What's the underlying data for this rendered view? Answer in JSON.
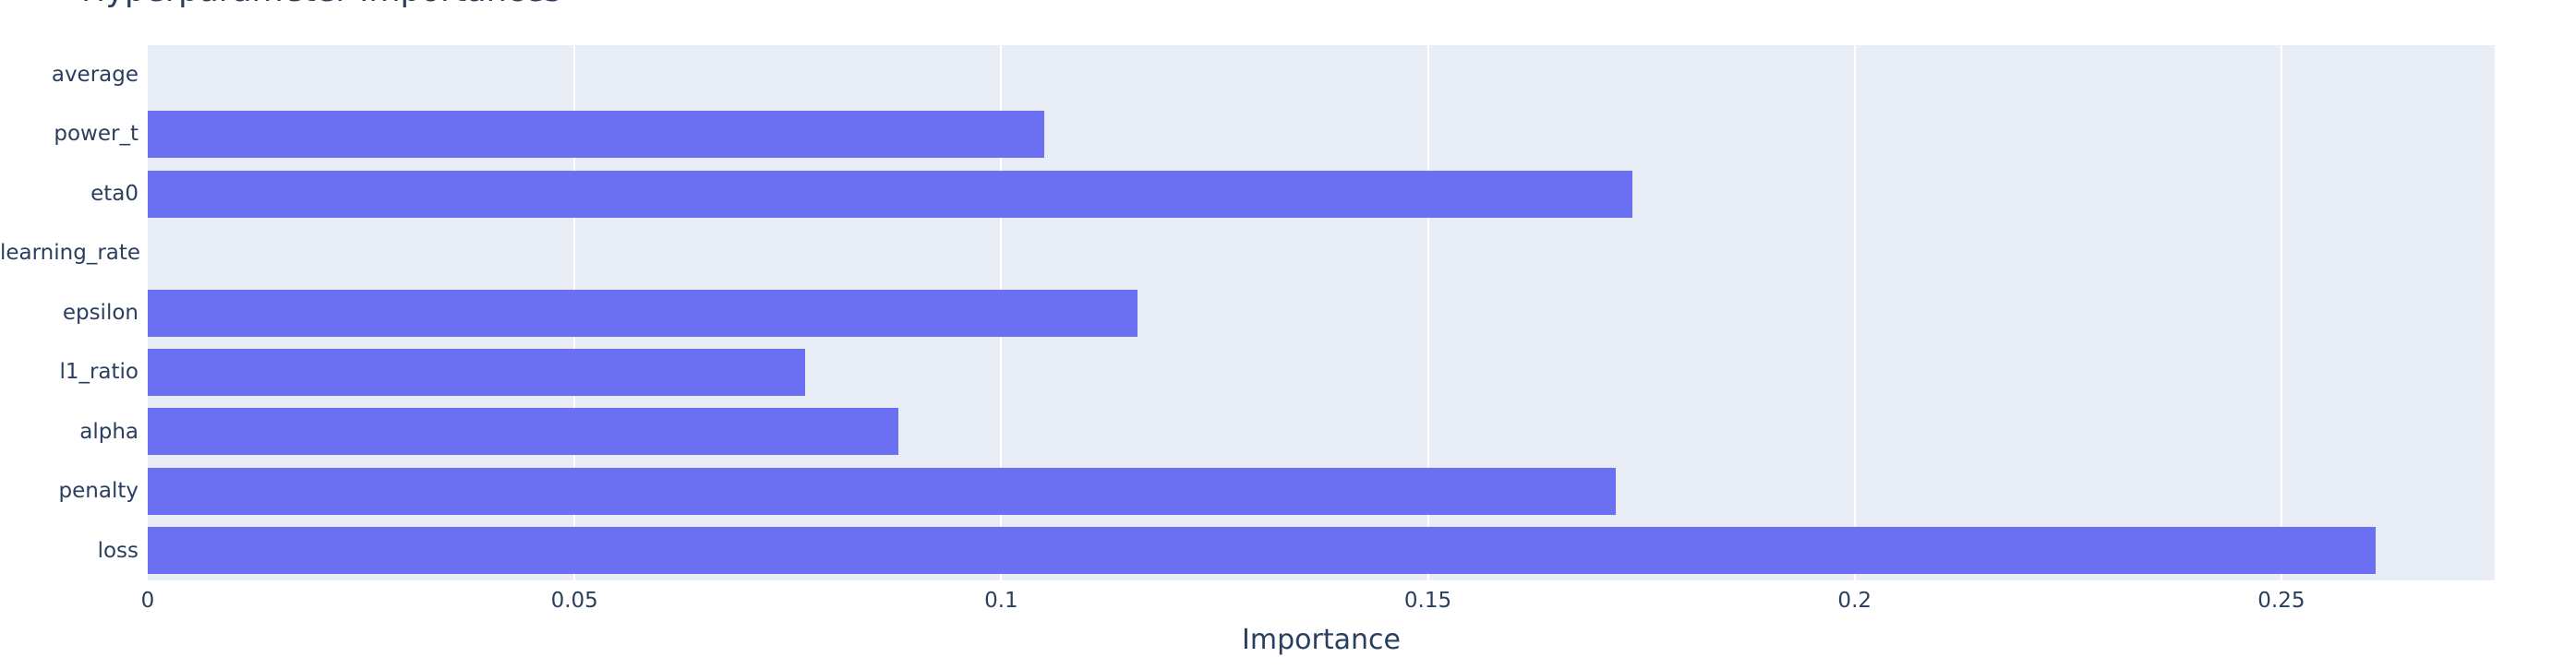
{
  "figure": {
    "background": "#ffffff"
  },
  "chart_data": {
    "type": "bar",
    "orientation": "horizontal",
    "title": "Hyperparameter Importances",
    "title_clipped_at_top": true,
    "categories": [
      "average",
      "power_t",
      "eta0",
      "learning_rate",
      "epsilon",
      "l1_ratio",
      "alpha",
      "penalty",
      "loss"
    ],
    "values": [
      0.0,
      0.105,
      0.174,
      0.0,
      0.116,
      0.077,
      0.088,
      0.172,
      0.261
    ],
    "xlabel": "Importance",
    "ylabel": "",
    "xlim": [
      0,
      0.275
    ],
    "xticks": [
      0,
      0.05,
      0.1,
      0.15,
      0.2,
      0.25
    ],
    "xtick_labels": [
      "0",
      "0.05",
      "0.1",
      "0.15",
      "0.2",
      "0.25"
    ],
    "grid": true,
    "legend": false,
    "bar_fraction": 0.79,
    "colors": {
      "bar": "#6a70f1",
      "plot_background": "#e8ecf5",
      "grid": "#ffffff",
      "text": "#2a3f5f"
    }
  }
}
